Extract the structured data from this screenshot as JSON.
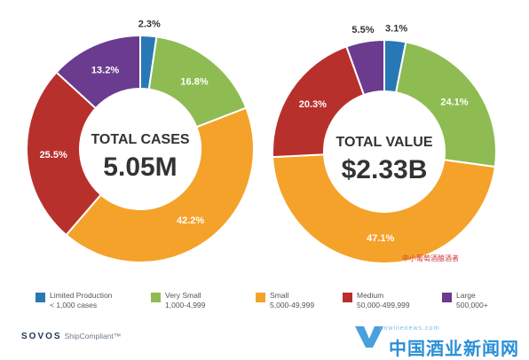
{
  "colors": {
    "Limited Production": "#2878b5",
    "Very Small": "#8ebc52",
    "Small": "#f5a22a",
    "Medium": "#b8302c",
    "Large": "#6a3b8f"
  },
  "chart_data": [
    {
      "type": "pie",
      "center_title": "TOTAL CASES",
      "center_value": "5.05M",
      "categories": [
        "Limited Production",
        "Very Small",
        "Small",
        "Medium",
        "Large"
      ],
      "values": [
        2.3,
        16.8,
        42.2,
        25.5,
        13.2
      ],
      "labels": [
        "2.3%",
        "16.8%",
        "42.2%",
        "25.5%",
        "13.2%"
      ]
    },
    {
      "type": "pie",
      "center_title": "TOTAL VALUE",
      "center_value": "$2.33B",
      "categories": [
        "Limited Production",
        "Very Small",
        "Small",
        "Medium",
        "Large"
      ],
      "values": [
        3.1,
        24.1,
        47.1,
        20.3,
        5.5
      ],
      "labels": [
        "3.1%",
        "24.1%",
        "47.1%",
        "20.3%",
        "5.5%"
      ]
    }
  ],
  "legend": [
    {
      "name": "Limited Production",
      "range": "< 1,000 cases"
    },
    {
      "name": "Very Small",
      "range": "1,000-4,999"
    },
    {
      "name": "Small",
      "range": "5,000-49,999"
    },
    {
      "name": "Medium",
      "range": "50,000-499,999"
    },
    {
      "name": "Large",
      "range": "500,000+"
    }
  ],
  "brand": {
    "main": "SOVOS",
    "sub": "ShipCompliant™"
  },
  "watermark": {
    "wechat": "中小葡萄酒酿酒者",
    "site": "中国酒业新闻网",
    "url": "cnwinenews.com"
  }
}
